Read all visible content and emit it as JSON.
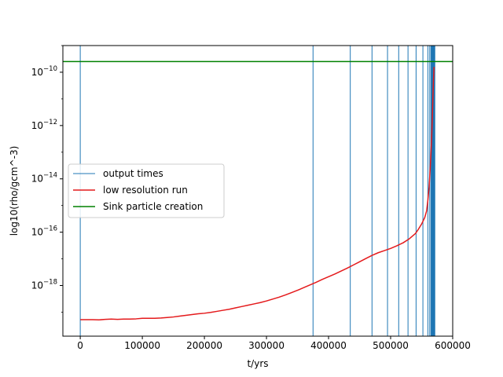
{
  "chart_data": {
    "type": "line",
    "xlabel": "t/yrs",
    "ylabel": "log10(rho/gcm^-3)",
    "xlim": [
      -28000,
      600000
    ],
    "ylim_log10": [
      -19.9,
      -9.0
    ],
    "y_scale": "log",
    "x_ticks": [
      {
        "value": 0,
        "label": "0"
      },
      {
        "value": 100000,
        "label": "100000"
      },
      {
        "value": 200000,
        "label": "200000"
      },
      {
        "value": 300000,
        "label": "300000"
      },
      {
        "value": 400000,
        "label": "400000"
      },
      {
        "value": 500000,
        "label": "500000"
      },
      {
        "value": 600000,
        "label": "600000"
      }
    ],
    "y_ticks": [
      {
        "exp": -10,
        "base": "10",
        "sup": "−10"
      },
      {
        "exp": -12,
        "base": "10",
        "sup": "−12"
      },
      {
        "exp": -14,
        "base": "10",
        "sup": "−14"
      },
      {
        "exp": -16,
        "base": "10",
        "sup": "−16"
      },
      {
        "exp": -18,
        "base": "10",
        "sup": "−18"
      }
    ],
    "legend": {
      "placement": "center-left",
      "entries": [
        {
          "label": "output times",
          "color": "#1f77b4"
        },
        {
          "label": "low resolution run",
          "color": "#e41a1c"
        },
        {
          "label": "Sink particle creation",
          "color": "#008000"
        }
      ]
    },
    "series": [
      {
        "name": "output times",
        "kind": "vlines",
        "color": "#1f77b4",
        "x": [
          0,
          375000,
          435000,
          470000,
          495000,
          513000,
          528000,
          541000,
          552000,
          560000,
          563000,
          565000,
          566000,
          567000,
          567500,
          568000,
          568400,
          568800,
          569100,
          569400,
          569700,
          570000,
          570300,
          570600,
          570900,
          571200
        ]
      },
      {
        "name": "low resolution run",
        "kind": "line",
        "color": "#e41a1c",
        "x": [
          0,
          10000,
          20000,
          30000,
          40000,
          50000,
          60000,
          70000,
          80000,
          90000,
          100000,
          110000,
          120000,
          130000,
          140000,
          150000,
          160000,
          170000,
          180000,
          190000,
          200000,
          210000,
          220000,
          230000,
          240000,
          250000,
          260000,
          270000,
          280000,
          290000,
          300000,
          310000,
          320000,
          330000,
          340000,
          350000,
          360000,
          370000,
          380000,
          390000,
          400000,
          410000,
          420000,
          430000,
          440000,
          450000,
          460000,
          470000,
          480000,
          490000,
          500000,
          510000,
          520000,
          530000,
          540000,
          545000,
          550000,
          555000,
          558000,
          560000,
          562000,
          564000,
          566000,
          567000,
          568000,
          569000,
          570000
        ],
        "y_log10": [
          -19.28,
          -19.28,
          -19.28,
          -19.29,
          -19.27,
          -19.26,
          -19.27,
          -19.26,
          -19.26,
          -19.25,
          -19.23,
          -19.23,
          -19.23,
          -19.22,
          -19.2,
          -19.18,
          -19.15,
          -19.12,
          -19.09,
          -19.06,
          -19.04,
          -19.01,
          -18.97,
          -18.93,
          -18.89,
          -18.84,
          -18.79,
          -18.74,
          -18.69,
          -18.64,
          -18.58,
          -18.51,
          -18.44,
          -18.36,
          -18.27,
          -18.18,
          -18.08,
          -17.98,
          -17.88,
          -17.77,
          -17.67,
          -17.57,
          -17.46,
          -17.35,
          -17.23,
          -17.11,
          -16.99,
          -16.87,
          -16.77,
          -16.69,
          -16.61,
          -16.51,
          -16.4,
          -16.25,
          -16.05,
          -15.88,
          -15.69,
          -15.45,
          -15.2,
          -14.8,
          -14.3,
          -13.5,
          -12.5,
          -11.8,
          -11.0,
          -10.3,
          -9.8
        ]
      },
      {
        "name": "Sink particle creation",
        "kind": "hline",
        "color": "#008000",
        "y_log10": -9.6
      }
    ]
  }
}
